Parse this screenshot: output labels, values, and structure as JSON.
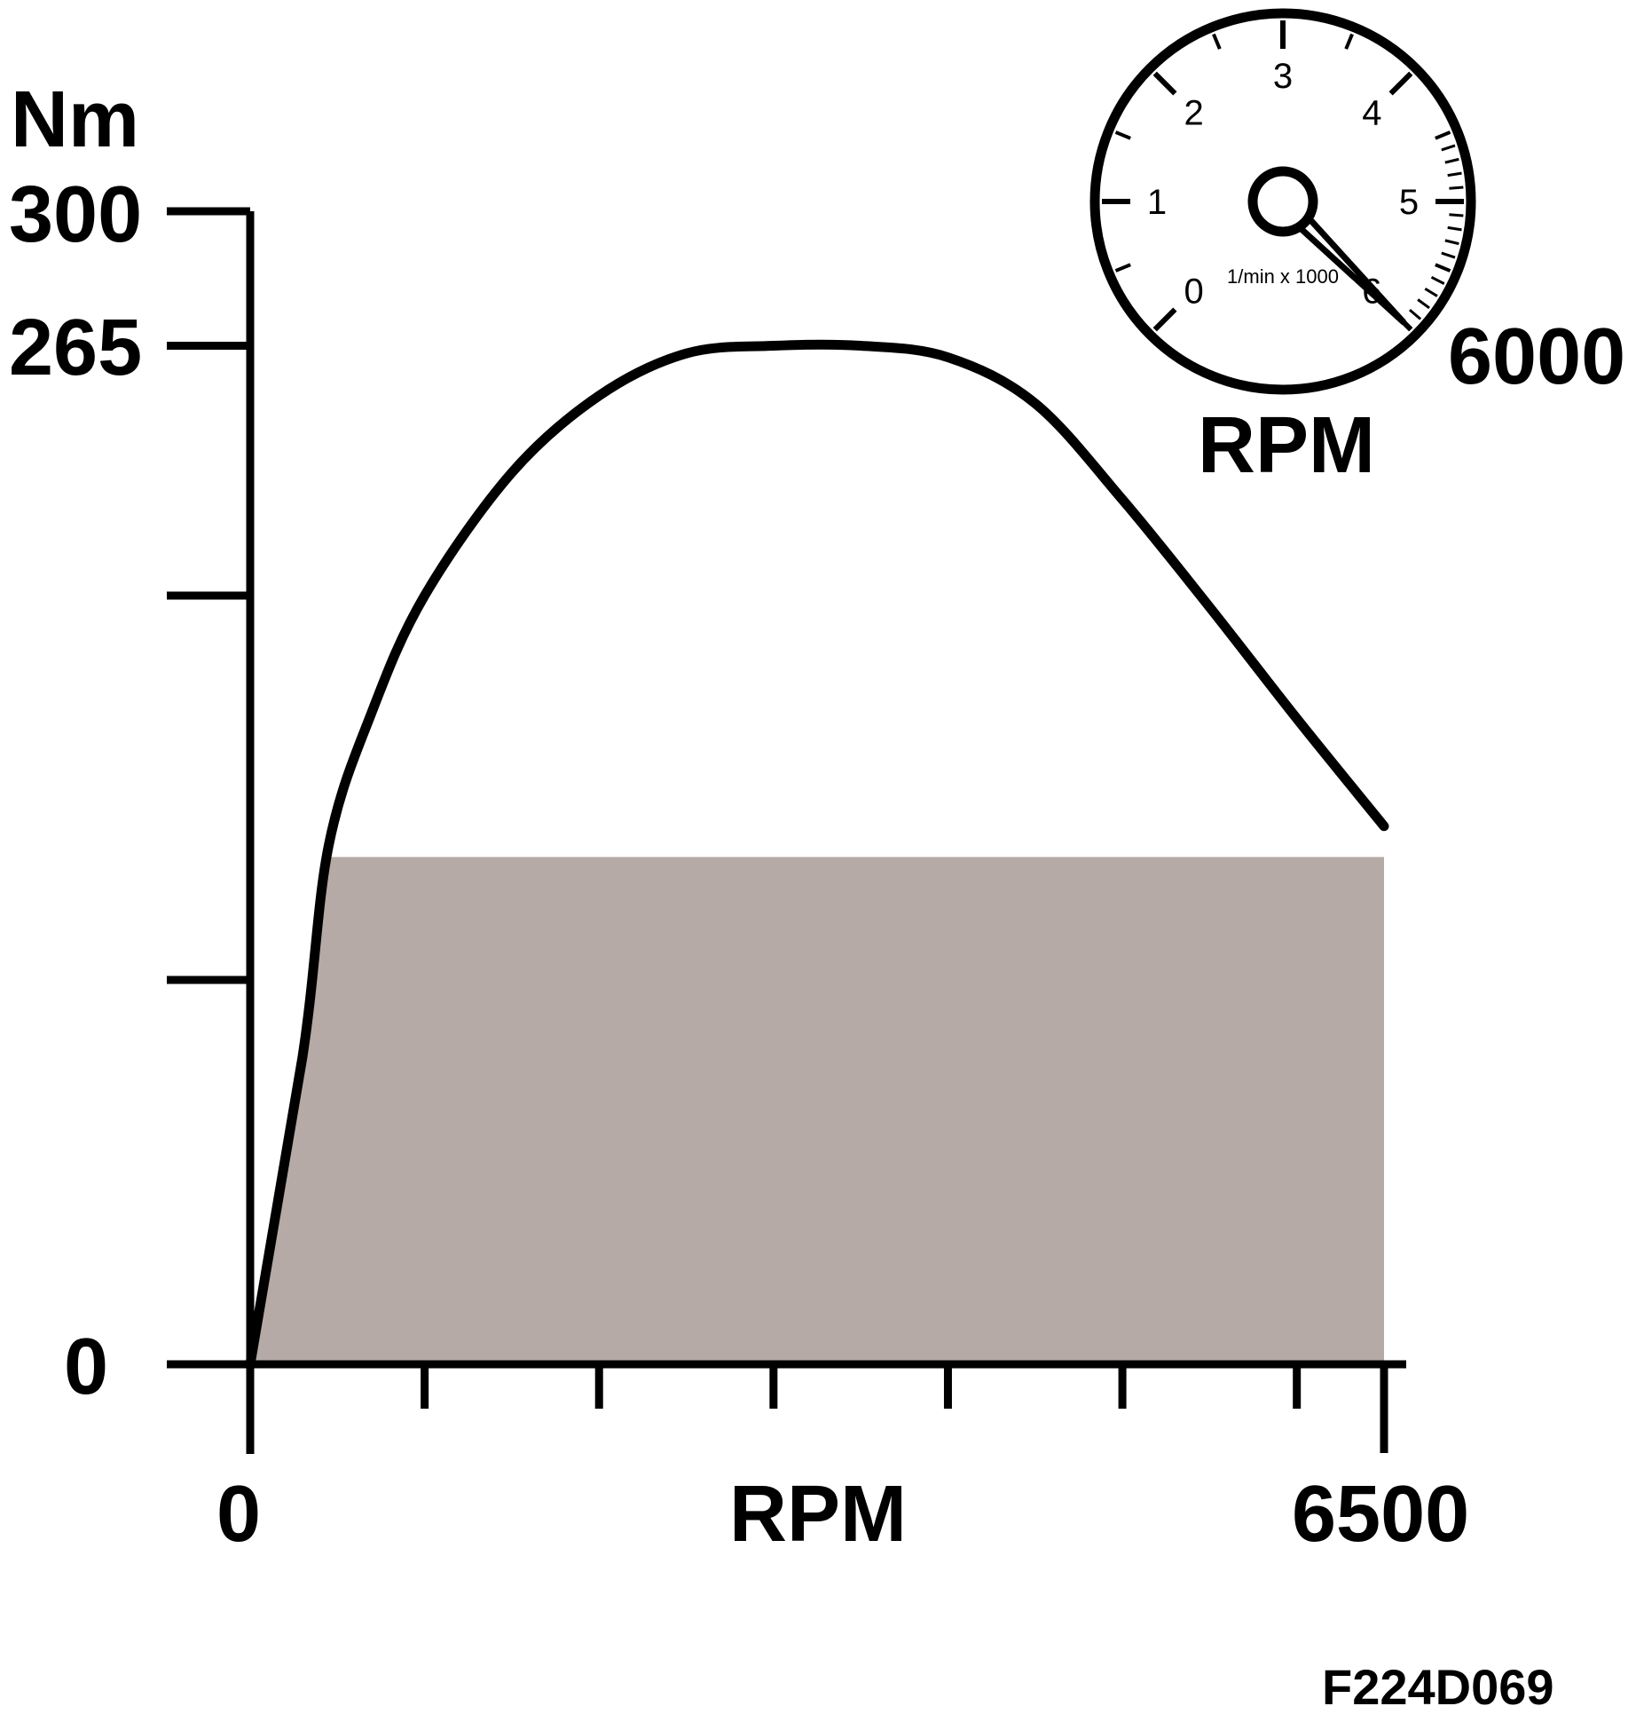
{
  "chart_data": {
    "type": "line",
    "y_unit": "Nm",
    "x_label": "RPM",
    "x_range": [
      0,
      6500
    ],
    "y_range": [
      0,
      300
    ],
    "x_tick_labels": [
      "0",
      "6500"
    ],
    "y_tick_labels": [
      "0",
      "265",
      "300"
    ],
    "x_minor_ticks": [
      0,
      1000,
      2000,
      3000,
      4000,
      5000,
      6000,
      6500
    ],
    "y_minor_ticks": [
      0,
      100,
      200,
      265,
      300
    ],
    "torque_curve": {
      "x": [
        0,
        300,
        450,
        700,
        1000,
        1500,
        2000,
        2500,
        3000,
        3500,
        4000,
        4500,
        5000,
        5500,
        6000,
        6500
      ],
      "y": [
        0,
        80,
        135,
        170,
        200,
        232,
        252,
        263,
        265,
        265,
        262,
        250,
        225,
        197,
        168,
        140
      ]
    },
    "shaded_area": {
      "x": [
        0,
        450,
        6500
      ],
      "y": [
        0,
        132,
        132
      ],
      "color": "#b6aaa6"
    },
    "tachometer": {
      "dial_labels": [
        "0",
        "1",
        "2",
        "3",
        "4",
        "5",
        "6"
      ],
      "unit_label": "1/min x 1000",
      "needle_value": 6,
      "readout": "6000",
      "caption": "RPM"
    },
    "figure_code": "F224D069"
  }
}
